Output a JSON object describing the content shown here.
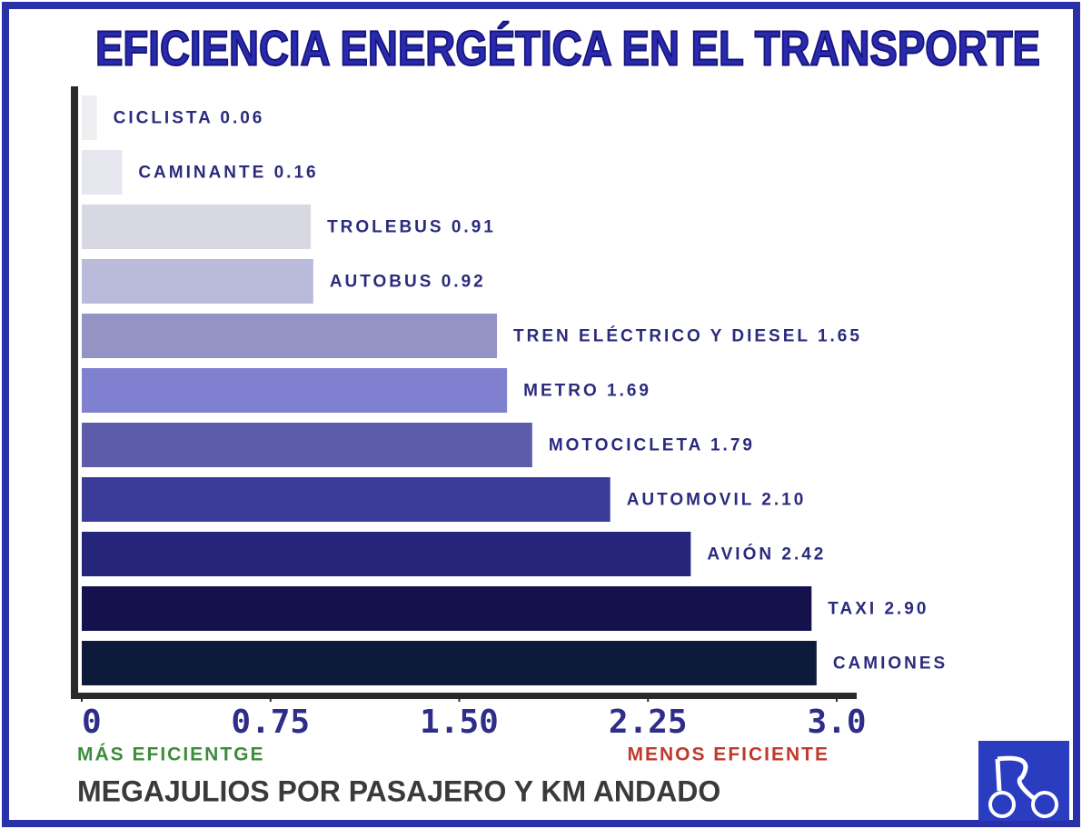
{
  "chart_data": {
    "type": "barh",
    "title": "EFICIENCIA ENERGÉTICA EN EL TRANSPORTE",
    "x_label": "MEGAJULIOS POR PASAJERO Y KM ANDADO",
    "left_note": "MÁS EFICIENTGE",
    "right_note": "MENOS EFICIENTE",
    "categories": [
      "CICLISTA",
      "CAMINANTE",
      "TROLEBUS",
      "AUTOBUS",
      "TREN ELÉCTRICO Y DIESEL",
      "METRO",
      "MOTOCICLETA",
      "AUTOMOVIL",
      "AVIÓN",
      "TAXI",
      "CAMIONES"
    ],
    "values": [
      0.06,
      0.16,
      0.91,
      0.92,
      1.65,
      1.69,
      1.79,
      2.1,
      2.42,
      2.9,
      2.92
    ],
    "value_labels": [
      "0.06",
      "0.16",
      "0.91",
      "0.92",
      "1.65",
      "1.69",
      "1.79",
      "2.10",
      "2.42",
      "2.90",
      null
    ],
    "colors": [
      "#efeff2",
      "#e6e6ee",
      "#d8d8e2",
      "#babadb",
      "#9494c4",
      "#8080d0",
      "#5c5caa",
      "#3b3b9a",
      "#25257c",
      "#15114c",
      "#0d1a3a"
    ],
    "xlim": [
      0,
      3
    ],
    "xticks": [
      0,
      0.75,
      {
        "value": 1.5,
        "label": "1.50"
      },
      2.25,
      {
        "value": 3,
        "label": "3.0"
      }
    ]
  }
}
